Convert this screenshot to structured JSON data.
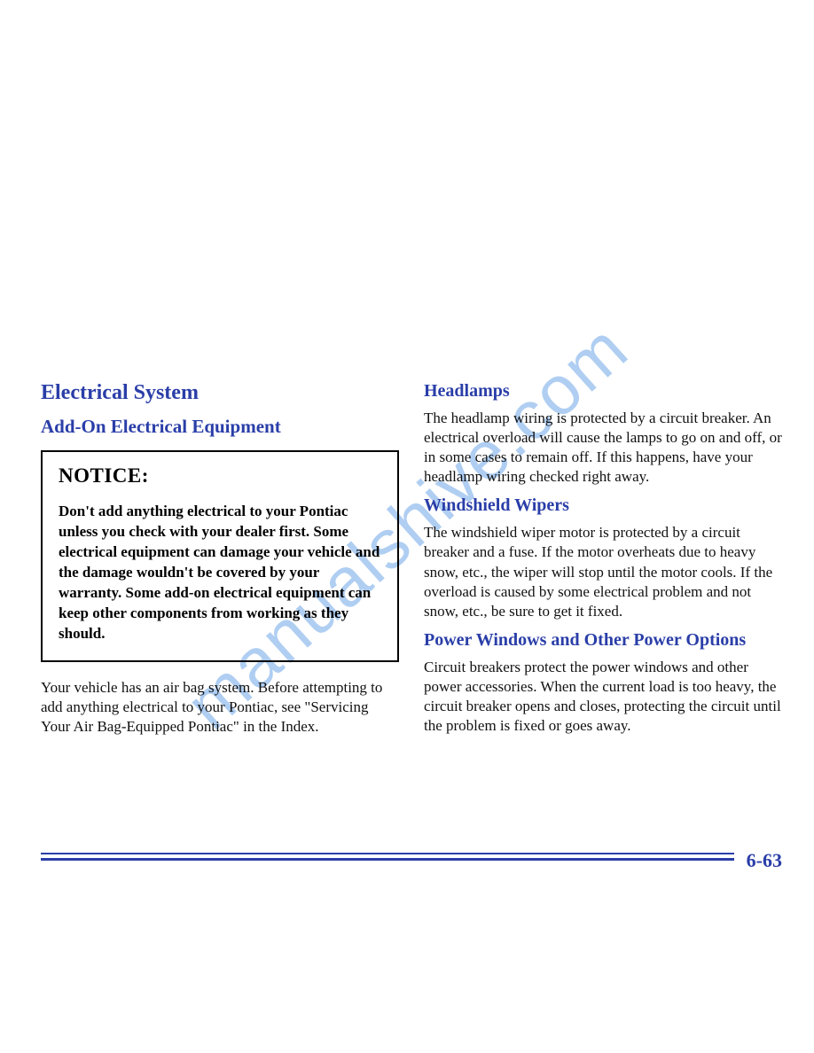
{
  "colors": {
    "heading": "#2a3ea8",
    "body": "#111111",
    "rule": "#2a3ea8",
    "watermark": "#6fa7e8",
    "background": "#ffffff",
    "notice_border": "#000000"
  },
  "typography": {
    "h1_fontsize": 24,
    "h2_fontsize": 21,
    "h3_fontsize": 20,
    "body_fontsize": 17,
    "notice_title_fontsize": 23,
    "page_num_fontsize": 22,
    "watermark_fontsize": 78,
    "font_family": "Times New Roman"
  },
  "left": {
    "section_title": "Electrical System",
    "subsection_title": "Add-On Electrical Equipment",
    "notice_label": "NOTICE:",
    "notice_body": "Don't add anything electrical to your Pontiac unless you check with your dealer first. Some electrical equipment can damage your vehicle and the damage wouldn't be covered by your warranty. Some add-on electrical equipment can keep other components from working as they should.",
    "body": "Your vehicle has an air bag system. Before attempting to add anything electrical to your Pontiac, see \"Servicing Your Air Bag-Equipped Pontiac\" in the Index."
  },
  "right": {
    "sec1_title": "Headlamps",
    "sec1_body": "The headlamp wiring is protected by a circuit breaker. An electrical overload will cause the lamps to go on and off, or in some cases to remain off. If this happens, have your headlamp wiring checked right away.",
    "sec2_title": "Windshield Wipers",
    "sec2_body": "The windshield wiper motor is protected by a circuit breaker and a fuse. If the motor overheats due to heavy snow, etc., the wiper will stop until the motor cools. If the overload is caused by some electrical problem and not snow, etc., be sure to get it fixed.",
    "sec3_title": "Power Windows and Other Power Options",
    "sec3_body": "Circuit breakers protect the power windows and other power accessories. When the current load is too heavy, the circuit breaker opens and closes, protecting the circuit until the problem is fixed or goes away."
  },
  "page_number": "6-63",
  "watermark": "manualshive.com"
}
